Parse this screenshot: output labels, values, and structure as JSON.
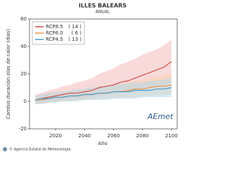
{
  "chart_data": {
    "type": "line",
    "title": "ILLES BALEARS",
    "subtitle": "ANUAL",
    "y_label": "Cambio duración olas de calor (días)",
    "x_label": "Año",
    "footer": "© Agencia Estatal de Meteorología",
    "logo": "AEmet",
    "x": [
      2006,
      2010,
      2015,
      2020,
      2025,
      2030,
      2035,
      2040,
      2045,
      2050,
      2055,
      2060,
      2065,
      2070,
      2075,
      2080,
      2085,
      2090,
      2095,
      2100
    ],
    "xlim": [
      2002,
      2104
    ],
    "xticks": [
      2020,
      2040,
      2060,
      2080,
      2100
    ],
    "ylim": [
      -20,
      60
    ],
    "yticks": [
      -20,
      0,
      20,
      40,
      60
    ],
    "series": [
      {
        "name": "RCP8.5",
        "count_label": "( 14 )",
        "color": "#d04f4a",
        "band_color": "#f4bcbc",
        "values": [
          1,
          2,
          3,
          4,
          5,
          6,
          6,
          7,
          8,
          10,
          11,
          12,
          14,
          15,
          17,
          19,
          21,
          23,
          25,
          29
        ],
        "lower": [
          -2,
          -1,
          0,
          0,
          1,
          1,
          2,
          2,
          3,
          4,
          5,
          5,
          6,
          7,
          8,
          9,
          10,
          11,
          12,
          14
        ],
        "upper": [
          5,
          6,
          8,
          9,
          11,
          12,
          14,
          15,
          17,
          20,
          22,
          24,
          27,
          29,
          31,
          34,
          36,
          38,
          41,
          45
        ]
      },
      {
        "name": "RCP6.0",
        "count_label": "( 6 )",
        "color": "#e8954a",
        "band_color": "#f7d3b0",
        "values": [
          1,
          1,
          2,
          3,
          3,
          4,
          4,
          5,
          5,
          6,
          6,
          7,
          7,
          8,
          9,
          9,
          10,
          11,
          11,
          12
        ],
        "lower": [
          -2,
          -2,
          -1,
          0,
          0,
          0,
          1,
          1,
          1,
          2,
          2,
          2,
          3,
          3,
          3,
          4,
          4,
          5,
          5,
          5
        ],
        "upper": [
          4,
          5,
          6,
          6,
          7,
          8,
          8,
          9,
          10,
          11,
          11,
          12,
          13,
          14,
          15,
          16,
          17,
          18,
          19,
          20
        ]
      },
      {
        "name": "RCP4.5",
        "count_label": "( 13 )",
        "color": "#4a9cc8",
        "band_color": "#b4d9ea",
        "values": [
          1,
          2,
          2,
          3,
          3,
          4,
          4,
          5,
          5,
          6,
          6,
          7,
          7,
          7,
          8,
          8,
          8,
          9,
          9,
          10
        ],
        "lower": [
          -2,
          -2,
          -1,
          -1,
          0,
          0,
          0,
          1,
          1,
          1,
          1,
          2,
          2,
          2,
          2,
          3,
          3,
          3,
          3,
          3
        ],
        "upper": [
          4,
          5,
          6,
          7,
          7,
          8,
          9,
          9,
          10,
          11,
          11,
          12,
          13,
          13,
          14,
          14,
          15,
          15,
          16,
          17
        ]
      }
    ]
  }
}
